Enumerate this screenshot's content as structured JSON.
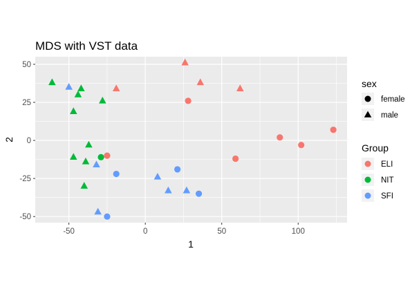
{
  "chart_data": {
    "type": "scatter",
    "title": "MDS with VST data",
    "xlabel": "1",
    "ylabel": "2",
    "xlim": [
      -72,
      132
    ],
    "ylim": [
      -54,
      55
    ],
    "x_ticks": [
      -50,
      0,
      50,
      100
    ],
    "y_ticks": [
      -50,
      -25,
      0,
      25,
      50
    ],
    "x_tick_labels": [
      "-50",
      "0",
      "50",
      "100"
    ],
    "y_tick_labels": [
      "-50",
      "-25",
      "0",
      "25",
      "50"
    ],
    "grid": true,
    "legend_position": "right",
    "legends": {
      "shape": {
        "title": "sex",
        "items": [
          {
            "label": "female",
            "shape": "circle"
          },
          {
            "label": "male",
            "shape": "triangle"
          }
        ]
      },
      "color": {
        "title": "Group",
        "items": [
          {
            "label": "ELI",
            "color": "#F8766D"
          },
          {
            "label": "NIT",
            "color": "#00BA38"
          },
          {
            "label": "SFI",
            "color": "#619CFF"
          }
        ]
      }
    },
    "colors": {
      "ELI": "#F8766D",
      "NIT": "#00BA38",
      "SFI": "#619CFF",
      "panel": "#EBEBEB",
      "grid": "#FFFFFF",
      "text": "#4D4D4D"
    },
    "points": [
      {
        "x": 26,
        "y": 51,
        "group": "ELI",
        "sex": "male"
      },
      {
        "x": 36,
        "y": 38,
        "group": "ELI",
        "sex": "male"
      },
      {
        "x": 62,
        "y": 34,
        "group": "ELI",
        "sex": "male"
      },
      {
        "x": -19,
        "y": 34,
        "group": "ELI",
        "sex": "male"
      },
      {
        "x": 28,
        "y": 26,
        "group": "ELI",
        "sex": "female"
      },
      {
        "x": 123,
        "y": 7,
        "group": "ELI",
        "sex": "female"
      },
      {
        "x": 88,
        "y": 2,
        "group": "ELI",
        "sex": "female"
      },
      {
        "x": 102,
        "y": -3,
        "group": "ELI",
        "sex": "female"
      },
      {
        "x": 59,
        "y": -12,
        "group": "ELI",
        "sex": "female"
      },
      {
        "x": -25,
        "y": -10,
        "group": "ELI",
        "sex": "female"
      },
      {
        "x": -61,
        "y": 38,
        "group": "NIT",
        "sex": "male"
      },
      {
        "x": -42,
        "y": 34,
        "group": "NIT",
        "sex": "male"
      },
      {
        "x": -44,
        "y": 30,
        "group": "NIT",
        "sex": "male"
      },
      {
        "x": -28,
        "y": 26,
        "group": "NIT",
        "sex": "male"
      },
      {
        "x": -47,
        "y": 19,
        "group": "NIT",
        "sex": "male"
      },
      {
        "x": -37,
        "y": -3,
        "group": "NIT",
        "sex": "male"
      },
      {
        "x": -47,
        "y": -11,
        "group": "NIT",
        "sex": "male"
      },
      {
        "x": -39,
        "y": -14,
        "group": "NIT",
        "sex": "male"
      },
      {
        "x": -40,
        "y": -30,
        "group": "NIT",
        "sex": "male"
      },
      {
        "x": -29,
        "y": -11,
        "group": "NIT",
        "sex": "female"
      },
      {
        "x": -50,
        "y": 35,
        "group": "SFI",
        "sex": "male"
      },
      {
        "x": -32,
        "y": -16,
        "group": "SFI",
        "sex": "male"
      },
      {
        "x": 8,
        "y": -24,
        "group": "SFI",
        "sex": "male"
      },
      {
        "x": 15,
        "y": -33,
        "group": "SFI",
        "sex": "male"
      },
      {
        "x": 27,
        "y": -33,
        "group": "SFI",
        "sex": "male"
      },
      {
        "x": -31,
        "y": -47,
        "group": "SFI",
        "sex": "male"
      },
      {
        "x": 21,
        "y": -19,
        "group": "SFI",
        "sex": "female"
      },
      {
        "x": -19,
        "y": -22,
        "group": "SFI",
        "sex": "female"
      },
      {
        "x": 35,
        "y": -35,
        "group": "SFI",
        "sex": "female"
      },
      {
        "x": -25,
        "y": -50,
        "group": "SFI",
        "sex": "female"
      }
    ]
  }
}
